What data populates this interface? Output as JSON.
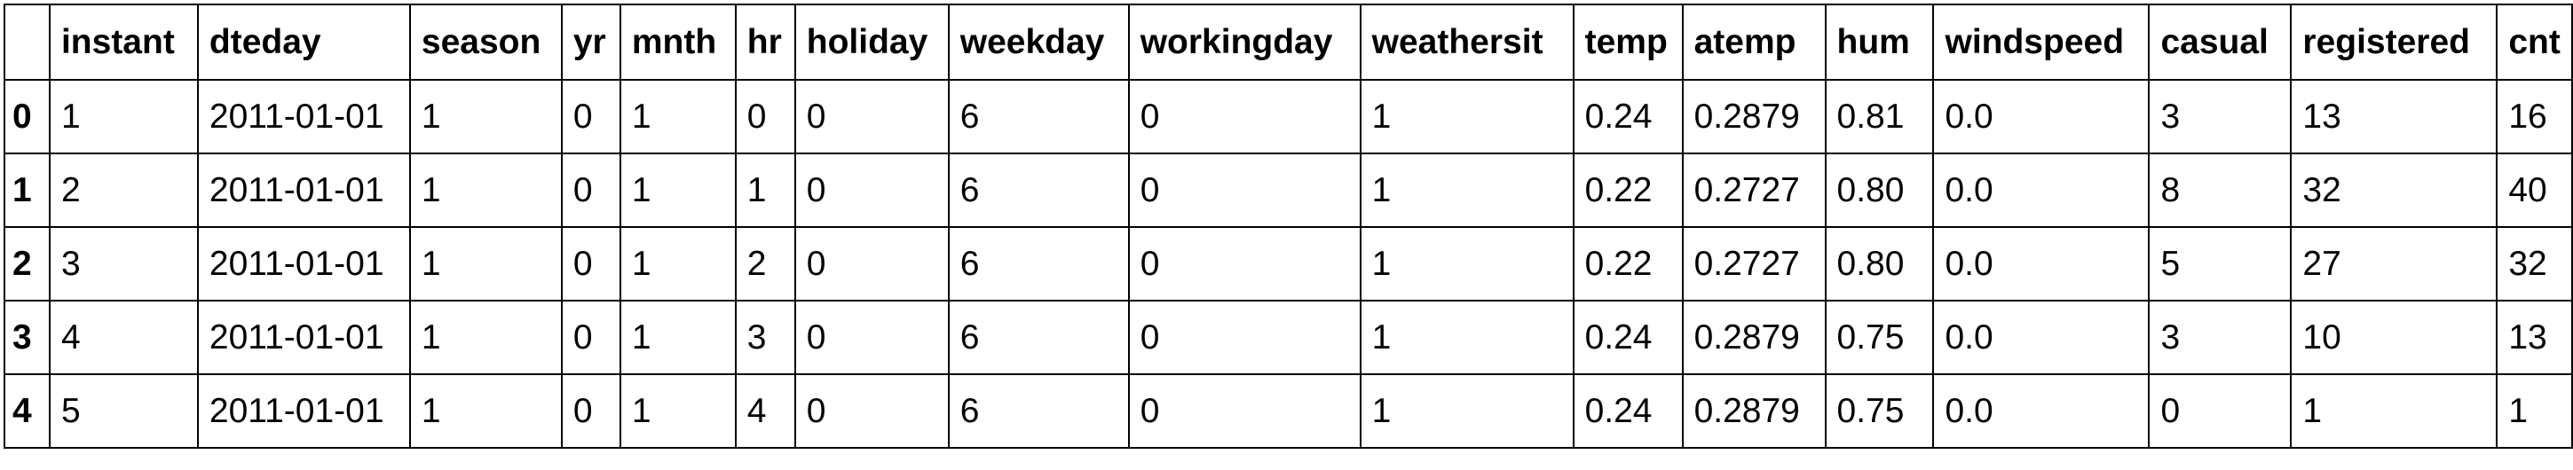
{
  "table": {
    "index_header": "",
    "columns": [
      "instant",
      "dteday",
      "season",
      "yr",
      "mnth",
      "hr",
      "holiday",
      "weekday",
      "workingday",
      "weathersit",
      "temp",
      "atemp",
      "hum",
      "windspeed",
      "casual",
      "registered",
      "cnt"
    ],
    "rows": [
      {
        "index": "0",
        "cells": [
          "1",
          "2011-01-01",
          "1",
          "0",
          "1",
          "0",
          "0",
          "6",
          "0",
          "1",
          "0.24",
          "0.2879",
          "0.81",
          "0.0",
          "3",
          "13",
          "16"
        ]
      },
      {
        "index": "1",
        "cells": [
          "2",
          "2011-01-01",
          "1",
          "0",
          "1",
          "1",
          "0",
          "6",
          "0",
          "1",
          "0.22",
          "0.2727",
          "0.80",
          "0.0",
          "8",
          "32",
          "40"
        ]
      },
      {
        "index": "2",
        "cells": [
          "3",
          "2011-01-01",
          "1",
          "0",
          "1",
          "2",
          "0",
          "6",
          "0",
          "1",
          "0.22",
          "0.2727",
          "0.80",
          "0.0",
          "5",
          "27",
          "32"
        ]
      },
      {
        "index": "3",
        "cells": [
          "4",
          "2011-01-01",
          "1",
          "0",
          "1",
          "3",
          "0",
          "6",
          "0",
          "1",
          "0.24",
          "0.2879",
          "0.75",
          "0.0",
          "3",
          "10",
          "13"
        ]
      },
      {
        "index": "4",
        "cells": [
          "5",
          "2011-01-01",
          "1",
          "0",
          "1",
          "4",
          "0",
          "6",
          "0",
          "1",
          "0.24",
          "0.2879",
          "0.75",
          "0.0",
          "0",
          "1",
          "1"
        ]
      }
    ]
  }
}
